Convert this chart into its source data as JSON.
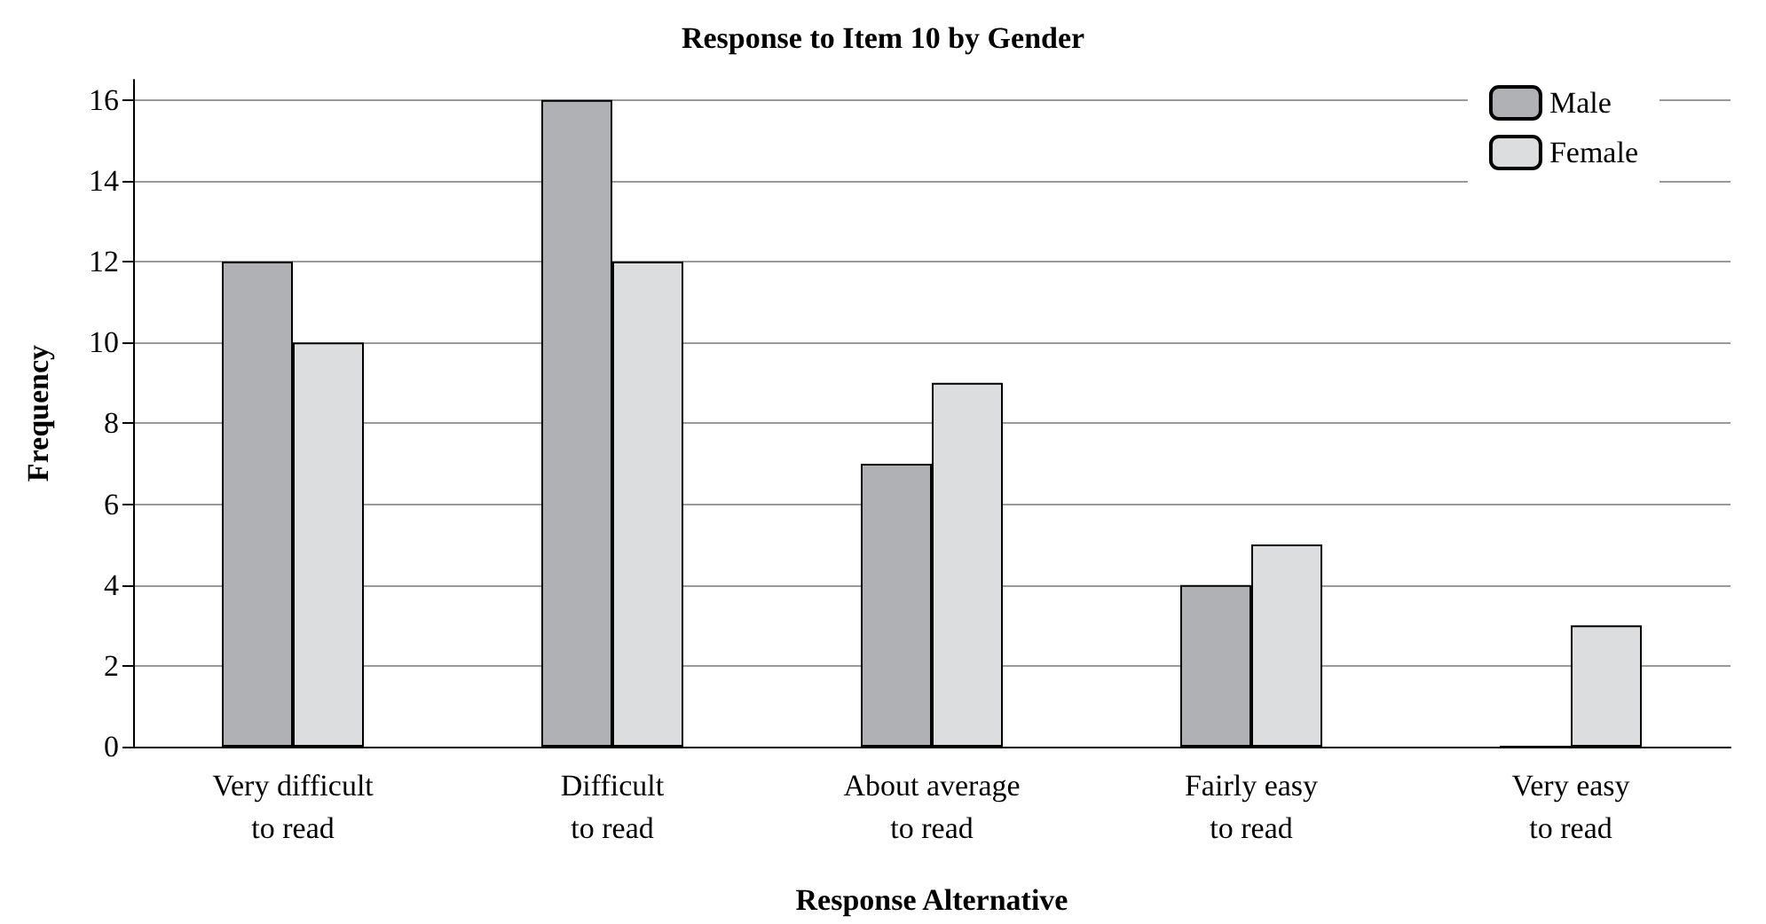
{
  "chart_data": {
    "type": "bar",
    "title": "Response to Item 10 by Gender",
    "xlabel": "Response Alternative",
    "ylabel": "Frequency",
    "categories": [
      "Very difficult\nto read",
      "Difficult\nto read",
      "About average\nto read",
      "Fairly easy\nto read",
      "Very easy\nto read"
    ],
    "series": [
      {
        "name": "Male",
        "color": "#b0b1b4",
        "values": [
          12,
          16,
          7,
          4,
          0
        ]
      },
      {
        "name": "Female",
        "color": "#dcdddf",
        "values": [
          10,
          12,
          9,
          5,
          3
        ]
      }
    ],
    "ylim": [
      0,
      16.5
    ],
    "yticks": [
      0,
      2,
      4,
      6,
      8,
      10,
      12,
      14,
      16
    ],
    "grid": "y",
    "legend": "top right"
  }
}
